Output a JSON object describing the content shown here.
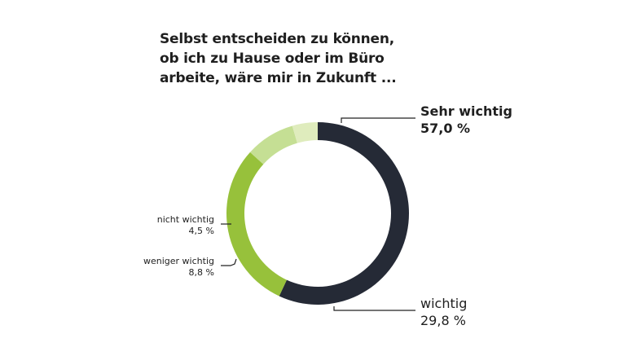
{
  "title_lines": [
    "Selbst entscheiden zu können,",
    "ob ich zu Hause oder im Büro",
    "arbeite, wäre mir in Zukunft ..."
  ],
  "chart_data": {
    "type": "pie",
    "title": "Selbst entscheiden zu können, ob ich zu Hause oder im Büro arbeite, wäre mir in Zukunft ...",
    "categories": [
      "Sehr wichtig",
      "wichtig",
      "weniger wichtig",
      "nicht wichtig"
    ],
    "values": [
      57.0,
      29.8,
      8.8,
      4.5
    ],
    "value_labels": [
      "57,0 %",
      "29,8 %",
      "8,8 %",
      "4,5 %"
    ],
    "colors": [
      "#252a36",
      "#97c13b",
      "#c5df94",
      "#dfecbd"
    ],
    "style": "donut"
  }
}
